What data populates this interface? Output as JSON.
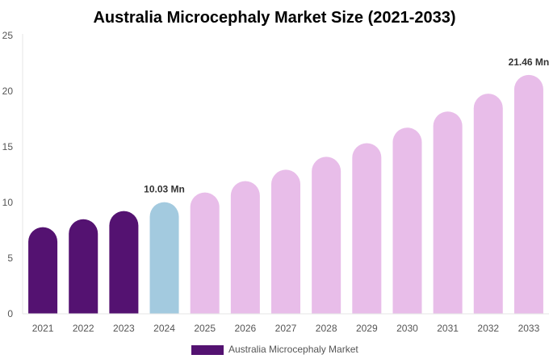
{
  "chart_data": {
    "type": "bar",
    "title": "Australia Microcephaly Market Size (2021-2033)",
    "categories": [
      "2021",
      "2022",
      "2023",
      "2024",
      "2025",
      "2026",
      "2027",
      "2028",
      "2029",
      "2030",
      "2031",
      "2032",
      "2033"
    ],
    "series": [
      {
        "name": "Australia Microcephaly Market",
        "values": [
          7.78,
          8.5,
          9.23,
          10.03,
          10.9,
          11.92,
          12.94,
          14.1,
          15.33,
          16.72,
          18.17,
          19.77,
          21.46
        ]
      }
    ],
    "bar_colors": [
      "#541271",
      "#541271",
      "#541271",
      "#a3cadf",
      "#e8bde9",
      "#e8bde9",
      "#e8bde9",
      "#e8bde9",
      "#e8bde9",
      "#e8bde9",
      "#e8bde9",
      "#e8bde9",
      "#e8bde9"
    ],
    "data_labels": {
      "2024": "10.03 Mn",
      "2033": "21.46 Mn"
    },
    "ylim": [
      0,
      25
    ],
    "yticks": [
      0,
      5,
      10,
      15,
      20,
      25
    ],
    "xlabel": "",
    "ylabel": "",
    "grid": false,
    "legend": {
      "position": "bottom",
      "label": "Australia Microcephaly Market",
      "color": "#541271"
    }
  }
}
